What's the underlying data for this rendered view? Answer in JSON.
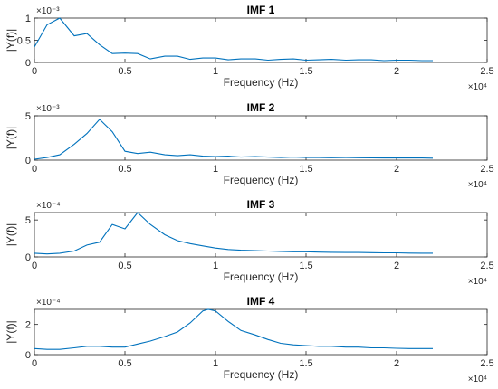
{
  "chart_data": [
    {
      "type": "line",
      "title": "IMF 1",
      "xlabel": "Frequency (Hz)",
      "ylabel": "|Y(f)|",
      "x_exponent": "×10⁴",
      "y_exponent": "×10⁻³",
      "xlim": [
        0,
        2.5
      ],
      "ylim": [
        0,
        1
      ],
      "xticks": [
        0,
        0.5,
        1,
        1.5,
        2,
        2.5
      ],
      "xtick_labels": [
        "0",
        "0.5",
        "1",
        "1.5",
        "2",
        "2.5"
      ],
      "yticks": [
        0,
        0.5,
        1
      ],
      "ytick_labels": [
        "0",
        "0.5",
        "1"
      ],
      "color": "#0072BD",
      "x": [
        0,
        0.07,
        0.14,
        0.22,
        0.29,
        0.36,
        0.43,
        0.5,
        0.57,
        0.64,
        0.72,
        0.79,
        0.86,
        0.93,
        1.0,
        1.07,
        1.14,
        1.22,
        1.29,
        1.36,
        1.43,
        1.5,
        1.57,
        1.64,
        1.72,
        1.79,
        1.86,
        1.93,
        2.0,
        2.07,
        2.14,
        2.2
      ],
      "y": [
        0.35,
        0.85,
        1.0,
        0.6,
        0.65,
        0.4,
        0.2,
        0.21,
        0.2,
        0.08,
        0.14,
        0.14,
        0.07,
        0.1,
        0.1,
        0.06,
        0.08,
        0.08,
        0.05,
        0.07,
        0.08,
        0.05,
        0.06,
        0.07,
        0.05,
        0.06,
        0.06,
        0.04,
        0.05,
        0.05,
        0.04,
        0.04
      ]
    },
    {
      "type": "line",
      "title": "IMF 2",
      "xlabel": "Frequency (Hz)",
      "ylabel": "|Y(f)|",
      "x_exponent": "×10⁴",
      "y_exponent": "×10⁻³",
      "xlim": [
        0,
        2.5
      ],
      "ylim": [
        0,
        5
      ],
      "xticks": [
        0,
        0.5,
        1,
        1.5,
        2,
        2.5
      ],
      "xtick_labels": [
        "0",
        "0.5",
        "1",
        "1.5",
        "2",
        "2.5"
      ],
      "yticks": [
        0,
        5
      ],
      "ytick_labels": [
        "0",
        "5"
      ],
      "color": "#0072BD",
      "x": [
        0,
        0.07,
        0.14,
        0.22,
        0.29,
        0.36,
        0.43,
        0.5,
        0.57,
        0.64,
        0.72,
        0.79,
        0.86,
        0.93,
        1.0,
        1.07,
        1.14,
        1.22,
        1.29,
        1.36,
        1.43,
        1.5,
        1.57,
        1.64,
        1.72,
        1.79,
        1.86,
        1.93,
        2.0,
        2.07,
        2.14,
        2.2
      ],
      "y": [
        0.1,
        0.3,
        0.6,
        1.8,
        3.0,
        4.6,
        3.2,
        1.0,
        0.75,
        0.9,
        0.6,
        0.5,
        0.6,
        0.45,
        0.4,
        0.45,
        0.35,
        0.4,
        0.35,
        0.3,
        0.35,
        0.3,
        0.3,
        0.28,
        0.3,
        0.28,
        0.26,
        0.25,
        0.25,
        0.24,
        0.24,
        0.22
      ]
    },
    {
      "type": "line",
      "title": "IMF 3",
      "xlabel": "Frequency (Hz)",
      "ylabel": "|Y(f)|",
      "x_exponent": "×10⁴",
      "y_exponent": "×10⁻⁴",
      "xlim": [
        0,
        2.5
      ],
      "ylim": [
        0,
        6
      ],
      "xticks": [
        0,
        0.5,
        1,
        1.5,
        2,
        2.5
      ],
      "xtick_labels": [
        "0",
        "0.5",
        "1",
        "1.5",
        "2",
        "2.5"
      ],
      "yticks": [
        0,
        5
      ],
      "ytick_labels": [
        "0",
        "5"
      ],
      "color": "#0072BD",
      "x": [
        0,
        0.07,
        0.14,
        0.22,
        0.29,
        0.36,
        0.43,
        0.5,
        0.57,
        0.64,
        0.72,
        0.79,
        0.86,
        0.93,
        1.0,
        1.07,
        1.14,
        1.22,
        1.29,
        1.36,
        1.43,
        1.5,
        1.57,
        1.64,
        1.72,
        1.79,
        1.86,
        1.93,
        2.0,
        2.07,
        2.14,
        2.2
      ],
      "y": [
        0.5,
        0.4,
        0.5,
        0.8,
        1.6,
        2.0,
        4.4,
        3.8,
        6.0,
        4.4,
        3.0,
        2.2,
        1.8,
        1.5,
        1.2,
        1.0,
        0.9,
        0.85,
        0.8,
        0.75,
        0.7,
        0.7,
        0.65,
        0.62,
        0.6,
        0.6,
        0.58,
        0.55,
        0.55,
        0.52,
        0.5,
        0.5
      ]
    },
    {
      "type": "line",
      "title": "IMF 4",
      "xlabel": "Frequency (Hz)",
      "ylabel": "|Y(f)|",
      "x_exponent": "×10⁴",
      "y_exponent": "×10⁻⁴",
      "xlim": [
        0,
        2.5
      ],
      "ylim": [
        0,
        3
      ],
      "xticks": [
        0,
        0.5,
        1,
        1.5,
        2,
        2.5
      ],
      "xtick_labels": [
        "0",
        "0.5",
        "1",
        "1.5",
        "2",
        "2.5"
      ],
      "yticks": [
        0,
        2
      ],
      "ytick_labels": [
        "0",
        "2"
      ],
      "color": "#0072BD",
      "x": [
        0,
        0.07,
        0.14,
        0.22,
        0.29,
        0.36,
        0.43,
        0.5,
        0.57,
        0.64,
        0.72,
        0.79,
        0.86,
        0.93,
        0.96,
        1.0,
        1.07,
        1.14,
        1.22,
        1.29,
        1.36,
        1.43,
        1.5,
        1.57,
        1.64,
        1.72,
        1.79,
        1.86,
        1.93,
        2.0,
        2.07,
        2.14,
        2.2
      ],
      "y": [
        0.4,
        0.35,
        0.35,
        0.45,
        0.55,
        0.55,
        0.5,
        0.5,
        0.7,
        0.9,
        1.2,
        1.5,
        2.1,
        2.9,
        3.0,
        2.9,
        2.2,
        1.6,
        1.3,
        1.0,
        0.75,
        0.65,
        0.6,
        0.55,
        0.55,
        0.5,
        0.5,
        0.45,
        0.45,
        0.42,
        0.4,
        0.4,
        0.4
      ]
    }
  ]
}
